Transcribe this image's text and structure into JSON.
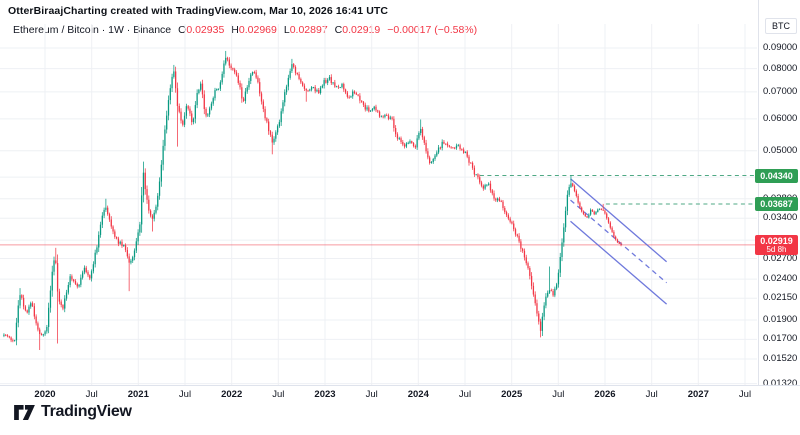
{
  "header": {
    "attribution": "OtterBiraajCharting created with TradingView.com, Mar 10, 2026 16:41 UTC"
  },
  "legend": {
    "symbol_line": "Ethereum / Bitcoin · 1W · Binance",
    "ohlc": [
      {
        "k": "O",
        "v": "0.02935"
      },
      {
        "k": "H",
        "v": "0.02969"
      },
      {
        "k": "L",
        "v": "0.02897"
      },
      {
        "k": "C",
        "v": "0.02919"
      }
    ],
    "change": "−0.00017 (−0.58%)"
  },
  "price_axis": {
    "unit": "BTC",
    "badges": [
      {
        "label": "0.04340",
        "price": 0.0434,
        "color": "#2f9e55"
      },
      {
        "label": "0.03687",
        "price": 0.03687,
        "color": "#2f9e55"
      },
      {
        "label": "0.02919",
        "countdown": "5d 8h",
        "price": 0.02919,
        "color": "#f23645"
      }
    ]
  },
  "footer": {
    "brand": "TradingView"
  },
  "colors": {
    "up": "#089981",
    "down": "#f23645",
    "grid": "#eef0f4",
    "axis_text": "#131722",
    "badge_green": "#2f9e55",
    "line_green": "#4fa984",
    "channel_blue": "#5f6ad8",
    "last_price": "#f23645"
  },
  "chart_data": {
    "type": "candlestick",
    "title": "Ethereum / Bitcoin",
    "interval": "1W",
    "exchange": "Binance",
    "quote_currency": "BTC",
    "y_scale": "log",
    "ylim": [
      0.0125,
      0.095
    ],
    "x_range_years": [
      2019.55,
      2027.63
    ],
    "last_candle": {
      "o": 0.02935,
      "h": 0.02969,
      "l": 0.02897,
      "c": 0.02919
    },
    "y_ticks": [
      {
        "p": 0.09,
        "label": "0.09000"
      },
      {
        "p": 0.08,
        "label": "0.08000"
      },
      {
        "p": 0.07,
        "label": "0.07000"
      },
      {
        "p": 0.06,
        "label": "0.06000"
      },
      {
        "p": 0.05,
        "label": "0.05000"
      },
      {
        "p": 0.043,
        "label": "0.04300"
      },
      {
        "p": 0.038,
        "label": "0.03800"
      },
      {
        "p": 0.034,
        "label": "0.03400"
      },
      {
        "p": 0.03,
        "label": "0.03000"
      },
      {
        "p": 0.027,
        "label": "0.02700"
      },
      {
        "p": 0.024,
        "label": "0.02400"
      },
      {
        "p": 0.0215,
        "label": "0.02150"
      },
      {
        "p": 0.019,
        "label": "0.01900"
      },
      {
        "p": 0.017,
        "label": "0.01700"
      },
      {
        "p": 0.0152,
        "label": "0.01520"
      },
      {
        "p": 0.0132,
        "label": "0.01320"
      }
    ],
    "x_ticks": [
      {
        "t": 2020.0,
        "label": "2020",
        "major": true
      },
      {
        "t": 2020.5,
        "label": "Jul",
        "major": false
      },
      {
        "t": 2021.0,
        "label": "2021",
        "major": true
      },
      {
        "t": 2021.5,
        "label": "Jul",
        "major": false
      },
      {
        "t": 2022.0,
        "label": "2022",
        "major": true
      },
      {
        "t": 2022.5,
        "label": "Jul",
        "major": false
      },
      {
        "t": 2023.0,
        "label": "2023",
        "major": true
      },
      {
        "t": 2023.5,
        "label": "Jul",
        "major": false
      },
      {
        "t": 2024.0,
        "label": "2024",
        "major": true
      },
      {
        "t": 2024.5,
        "label": "Jul",
        "major": false
      },
      {
        "t": 2025.0,
        "label": "2025",
        "major": true
      },
      {
        "t": 2025.5,
        "label": "Jul",
        "major": false
      },
      {
        "t": 2026.0,
        "label": "2026",
        "major": true
      },
      {
        "t": 2026.5,
        "label": "Jul",
        "major": false
      },
      {
        "t": 2027.0,
        "label": "2027",
        "major": true
      },
      {
        "t": 2027.5,
        "label": "Jul",
        "major": false
      }
    ],
    "anchors": [
      [
        2019.56,
        0.0176
      ],
      [
        2019.67,
        0.0167
      ],
      [
        2019.73,
        0.0222,
        0.0228,
        0
      ],
      [
        2019.8,
        0.0198
      ],
      [
        2019.85,
        0.021
      ],
      [
        2019.95,
        0.0172,
        0,
        0.016
      ],
      [
        2020.02,
        0.0182
      ],
      [
        2020.08,
        0.0252
      ],
      [
        2020.11,
        0.0278,
        0.0287,
        0
      ],
      [
        2020.14,
        0.0213,
        0,
        0.0166
      ],
      [
        2020.19,
        0.0204
      ],
      [
        2020.27,
        0.0243
      ],
      [
        2020.35,
        0.023
      ],
      [
        2020.43,
        0.0256
      ],
      [
        2020.48,
        0.0241
      ],
      [
        2020.56,
        0.0292
      ],
      [
        2020.61,
        0.034
      ],
      [
        2020.65,
        0.0367,
        0.038,
        0
      ],
      [
        2020.72,
        0.0318
      ],
      [
        2020.78,
        0.0297
      ],
      [
        2020.85,
        0.0288
      ],
      [
        2020.91,
        0.0261,
        0,
        0.0224
      ],
      [
        2020.96,
        0.0283
      ],
      [
        2021.02,
        0.0332
      ],
      [
        2021.05,
        0.0452,
        0.047,
        0
      ],
      [
        2021.1,
        0.0362
      ],
      [
        2021.15,
        0.0338,
        0,
        0.0315
      ],
      [
        2021.19,
        0.0366
      ],
      [
        2021.23,
        0.0422
      ],
      [
        2021.27,
        0.0532
      ],
      [
        2021.32,
        0.065
      ],
      [
        2021.35,
        0.0748
      ],
      [
        2021.38,
        0.079,
        0.0817,
        0
      ],
      [
        2021.42,
        0.0642,
        0,
        0.0512
      ],
      [
        2021.47,
        0.0576
      ],
      [
        2021.52,
        0.0655
      ],
      [
        2021.58,
        0.058
      ],
      [
        2021.63,
        0.07
      ],
      [
        2021.67,
        0.0726
      ],
      [
        2021.72,
        0.0606
      ],
      [
        2021.77,
        0.064
      ],
      [
        2021.82,
        0.07
      ],
      [
        2021.88,
        0.0732
      ],
      [
        2021.93,
        0.0862,
        0.0885,
        0
      ],
      [
        2021.98,
        0.082
      ],
      [
        2022.04,
        0.0782
      ],
      [
        2022.09,
        0.0715
      ],
      [
        2022.12,
        0.0662
      ],
      [
        2022.18,
        0.0742
      ],
      [
        2022.23,
        0.0788
      ],
      [
        2022.28,
        0.0735
      ],
      [
        2022.35,
        0.062
      ],
      [
        2022.4,
        0.056
      ],
      [
        2022.44,
        0.0526,
        0,
        0.049
      ],
      [
        2022.5,
        0.0576
      ],
      [
        2022.57,
        0.07
      ],
      [
        2022.65,
        0.082,
        0.0846,
        0
      ],
      [
        2022.71,
        0.076
      ],
      [
        2022.79,
        0.07,
        0,
        0.0662
      ],
      [
        2022.86,
        0.0718
      ],
      [
        2022.93,
        0.0694
      ],
      [
        2022.99,
        0.074
      ],
      [
        2023.05,
        0.0756
      ],
      [
        2023.12,
        0.0714
      ],
      [
        2023.18,
        0.073
      ],
      [
        2023.25,
        0.068
      ],
      [
        2023.32,
        0.07
      ],
      [
        2023.4,
        0.065
      ],
      [
        2023.46,
        0.063
      ],
      [
        2023.53,
        0.0642
      ],
      [
        2023.59,
        0.061
      ],
      [
        2023.65,
        0.0618
      ],
      [
        2023.72,
        0.0594
      ],
      [
        2023.75,
        0.0548
      ],
      [
        2023.8,
        0.053
      ],
      [
        2023.86,
        0.0514
      ],
      [
        2023.91,
        0.0528
      ],
      [
        2023.96,
        0.0508
      ],
      [
        2024.02,
        0.0572,
        0.0598,
        0
      ],
      [
        2024.08,
        0.05
      ],
      [
        2024.13,
        0.0458
      ],
      [
        2024.19,
        0.049
      ],
      [
        2024.26,
        0.0524
      ],
      [
        2024.34,
        0.0505
      ],
      [
        2024.41,
        0.0512
      ],
      [
        2024.48,
        0.0502
      ],
      [
        2024.53,
        0.048
      ],
      [
        2024.59,
        0.0445
      ],
      [
        2024.64,
        0.0428
      ],
      [
        2024.69,
        0.0404
      ],
      [
        2024.75,
        0.0416
      ],
      [
        2024.79,
        0.0388
      ],
      [
        2024.84,
        0.0378
      ],
      [
        2024.9,
        0.0368
      ],
      [
        2024.95,
        0.0344
      ],
      [
        2025.0,
        0.033
      ],
      [
        2025.06,
        0.0305
      ],
      [
        2025.11,
        0.0283
      ],
      [
        2025.16,
        0.0262
      ],
      [
        2025.21,
        0.0234
      ],
      [
        2025.26,
        0.0205
      ],
      [
        2025.31,
        0.018,
        0,
        0.0172
      ],
      [
        2025.36,
        0.0213
      ],
      [
        2025.4,
        0.0228,
        0.0258,
        0
      ],
      [
        2025.44,
        0.022
      ],
      [
        2025.49,
        0.0236
      ],
      [
        2025.53,
        0.0285
      ],
      [
        2025.57,
        0.034
      ],
      [
        2025.6,
        0.0396
      ],
      [
        2025.64,
        0.0418,
        0.0434,
        0
      ],
      [
        2025.68,
        0.0394
      ],
      [
        2025.72,
        0.0368
      ],
      [
        2025.76,
        0.035
      ],
      [
        2025.81,
        0.0342
      ],
      [
        2025.85,
        0.0358
      ],
      [
        2025.89,
        0.0347
      ],
      [
        2025.93,
        0.036
      ],
      [
        2025.98,
        0.0356,
        0.0369,
        0
      ],
      [
        2026.02,
        0.034
      ],
      [
        2026.06,
        0.0322
      ],
      [
        2026.11,
        0.03
      ],
      [
        2026.15,
        0.0296
      ],
      [
        2026.19,
        0.0292
      ]
    ],
    "drawings": {
      "horizontal_lines": [
        {
          "price": 0.0434,
          "from_t": 2024.66,
          "style": "dashed",
          "color": "#4fa984",
          "label": "0.04340"
        },
        {
          "price": 0.03687,
          "from_t": 2026.01,
          "style": "dashed",
          "color": "#4fa984",
          "label": "0.03687"
        }
      ],
      "last_price_line": {
        "price": 0.02919,
        "label": "0.02919",
        "countdown": "5d 8h",
        "color": "#f23645"
      },
      "channel": {
        "color": "#5f6ad8",
        "upper": [
          [
            2025.63,
            0.0426
          ],
          [
            2026.66,
            0.0265
          ]
        ],
        "middle": [
          [
            2025.63,
            0.0377
          ],
          [
            2026.66,
            0.0235
          ]
        ],
        "lower": [
          [
            2025.63,
            0.0334
          ],
          [
            2026.66,
            0.0208
          ]
        ]
      }
    }
  }
}
